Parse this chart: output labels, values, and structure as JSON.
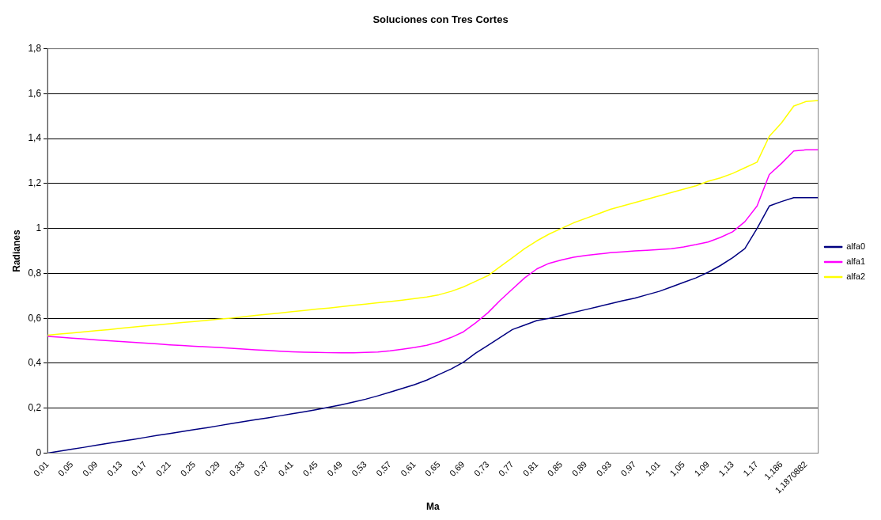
{
  "chart_data": {
    "type": "line",
    "title": "Soluciones con Tres Cortes",
    "xlabel": "Ma",
    "ylabel": "Radianes",
    "categories": [
      "0,01",
      null,
      "0,05",
      null,
      "0,09",
      null,
      "0,13",
      null,
      "0,17",
      null,
      "0,21",
      null,
      "0,25",
      null,
      "0,29",
      null,
      "0,33",
      null,
      "0,37",
      null,
      "0,41",
      null,
      "0,45",
      null,
      "0,49",
      null,
      "0,53",
      null,
      "0,57",
      null,
      "0,61",
      null,
      "0,65",
      null,
      "0,69",
      null,
      "0,73",
      null,
      "0,77",
      null,
      "0,81",
      null,
      "0,85",
      null,
      "0,89",
      null,
      "0,93",
      null,
      "0,97",
      null,
      "1,01",
      null,
      "1,05",
      null,
      "1,09",
      null,
      "1,13",
      null,
      "1,17",
      null,
      "1,186",
      null,
      "1,1870882",
      null
    ],
    "series": [
      {
        "name": "alfa0",
        "color": "#000080",
        "values": [
          0,
          0.009,
          0.018,
          0.026,
          0.035,
          0.044,
          0.053,
          0.061,
          0.07,
          0.079,
          0.087,
          0.096,
          0.105,
          0.113,
          0.122,
          0.131,
          0.14,
          0.149,
          0.157,
          0.166,
          0.175,
          0.184,
          0.194,
          0.204,
          0.215,
          0.227,
          0.24,
          0.255,
          0.271,
          0.288,
          0.305,
          0.325,
          0.35,
          0.375,
          0.405,
          0.445,
          0.48,
          0.515,
          0.55,
          0.57,
          0.59,
          0.6,
          0.613,
          0.626,
          0.639,
          0.652,
          0.665,
          0.678,
          0.69,
          0.705,
          0.72,
          0.74,
          0.76,
          0.78,
          0.805,
          0.835,
          0.87,
          0.91,
          1.0,
          1.1,
          1.12,
          1.137,
          1.137,
          1.137
        ]
      },
      {
        "name": "alfa1",
        "color": "#ff00ff",
        "values": [
          0.52,
          0.516,
          0.512,
          0.508,
          0.504,
          0.5,
          0.497,
          0.493,
          0.49,
          0.486,
          0.482,
          0.479,
          0.476,
          0.473,
          0.47,
          0.467,
          0.463,
          0.46,
          0.457,
          0.454,
          0.451,
          0.449,
          0.448,
          0.447,
          0.447,
          0.447,
          0.448,
          0.45,
          0.455,
          0.462,
          0.47,
          0.48,
          0.495,
          0.515,
          0.54,
          0.58,
          0.625,
          0.68,
          0.73,
          0.78,
          0.82,
          0.845,
          0.86,
          0.872,
          0.88,
          0.886,
          0.892,
          0.896,
          0.9,
          0.903,
          0.906,
          0.91,
          0.918,
          0.928,
          0.94,
          0.96,
          0.985,
          1.03,
          1.1,
          1.24,
          1.29,
          1.345,
          1.35,
          1.35
        ]
      },
      {
        "name": "alfa2",
        "color": "#ffff00",
        "values": [
          0.525,
          0.53,
          0.535,
          0.54,
          0.545,
          0.55,
          0.556,
          0.561,
          0.566,
          0.571,
          0.576,
          0.581,
          0.586,
          0.591,
          0.596,
          0.601,
          0.607,
          0.613,
          0.618,
          0.624,
          0.63,
          0.635,
          0.641,
          0.646,
          0.652,
          0.658,
          0.663,
          0.669,
          0.675,
          0.681,
          0.688,
          0.695,
          0.705,
          0.72,
          0.74,
          0.765,
          0.79,
          0.83,
          0.87,
          0.91,
          0.945,
          0.975,
          1.0,
          1.025,
          1.045,
          1.065,
          1.085,
          1.1,
          1.115,
          1.13,
          1.145,
          1.16,
          1.175,
          1.19,
          1.21,
          1.225,
          1.245,
          1.27,
          1.295,
          1.41,
          1.47,
          1.545,
          1.565,
          1.57
        ]
      }
    ],
    "ylim": [
      0,
      1.8
    ],
    "yticks": [
      0,
      {
        "value": 0.2,
        "label": "0,2"
      },
      {
        "value": 0.4,
        "label": "0,4"
      },
      {
        "value": 0.6,
        "label": "0,6"
      },
      {
        "value": 0.8,
        "label": "0,8"
      },
      1,
      {
        "value": 1.2,
        "label": "1,2"
      },
      {
        "value": 1.4,
        "label": "1,4"
      },
      {
        "value": 1.6,
        "label": "1,6"
      },
      {
        "value": 1.8,
        "label": "1,8"
      }
    ],
    "grid": "y",
    "legend": "right",
    "marker": "none",
    "line_style": "solid"
  }
}
